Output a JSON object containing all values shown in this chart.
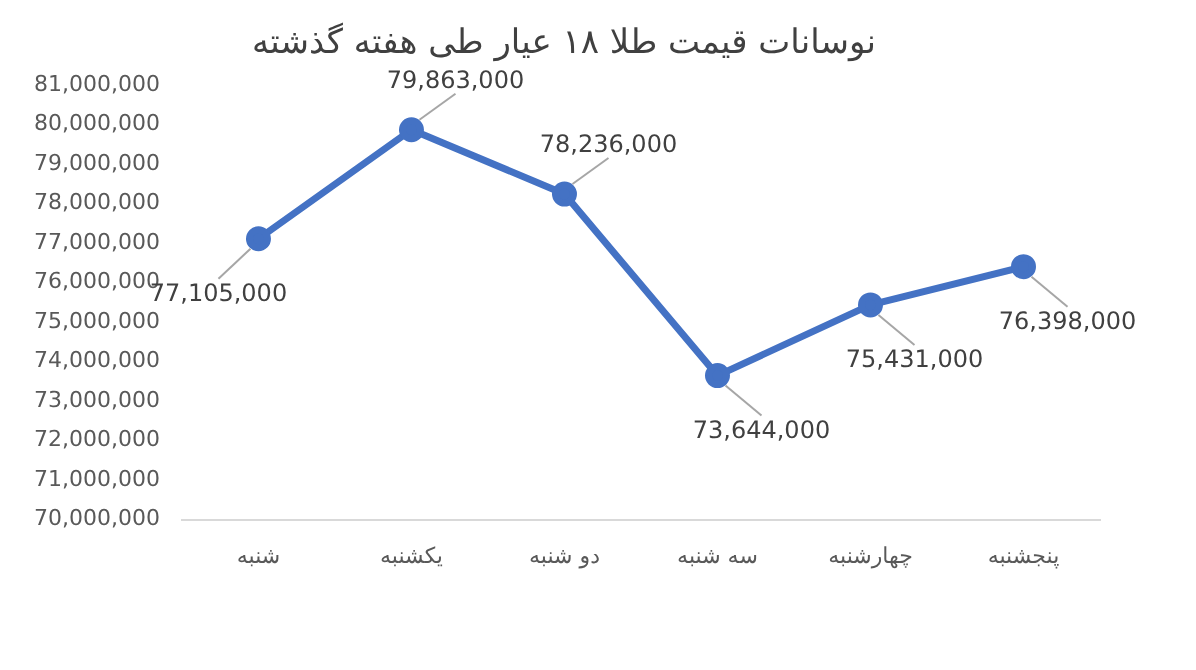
{
  "chart_data": {
    "type": "line",
    "title": "نوسانات قیمت طلا ۱۸ عیار طی هفته گذشته",
    "categories": [
      "شنبه",
      "یکشنبه",
      "دو شنبه",
      "سه شنبه",
      "چهارشنبه",
      "پنجشنبه"
    ],
    "series": [
      {
        "color": "#4472c4",
        "values": [
          77105000,
          79863000,
          78236000,
          73644000,
          75431000,
          76398000
        ],
        "value_labels": [
          "77,105,000",
          "79,863,000",
          "78,236,000",
          "73,644,000",
          "75,431,000",
          "76,398,000"
        ]
      }
    ],
    "ylim": [
      70000000,
      81000000
    ],
    "yticks": [
      {
        "value": 70000000,
        "label": "70,000,000"
      },
      {
        "value": 71000000,
        "label": "71,000,000"
      },
      {
        "value": 72000000,
        "label": "72,000,000"
      },
      {
        "value": 73000000,
        "label": "73,000,000"
      },
      {
        "value": 74000000,
        "label": "74,000,000"
      },
      {
        "value": 75000000,
        "label": "75,000,000"
      },
      {
        "value": 76000000,
        "label": "76,000,000"
      },
      {
        "value": 77000000,
        "label": "77,000,000"
      },
      {
        "value": 78000000,
        "label": "78,000,000"
      },
      {
        "value": 79000000,
        "label": "79,000,000"
      },
      {
        "value": 80000000,
        "label": "80,000,000"
      },
      {
        "value": 81000000,
        "label": "81,000,000"
      }
    ],
    "grid": false,
    "legend": false,
    "marker": "circle",
    "line_style": "solid"
  }
}
